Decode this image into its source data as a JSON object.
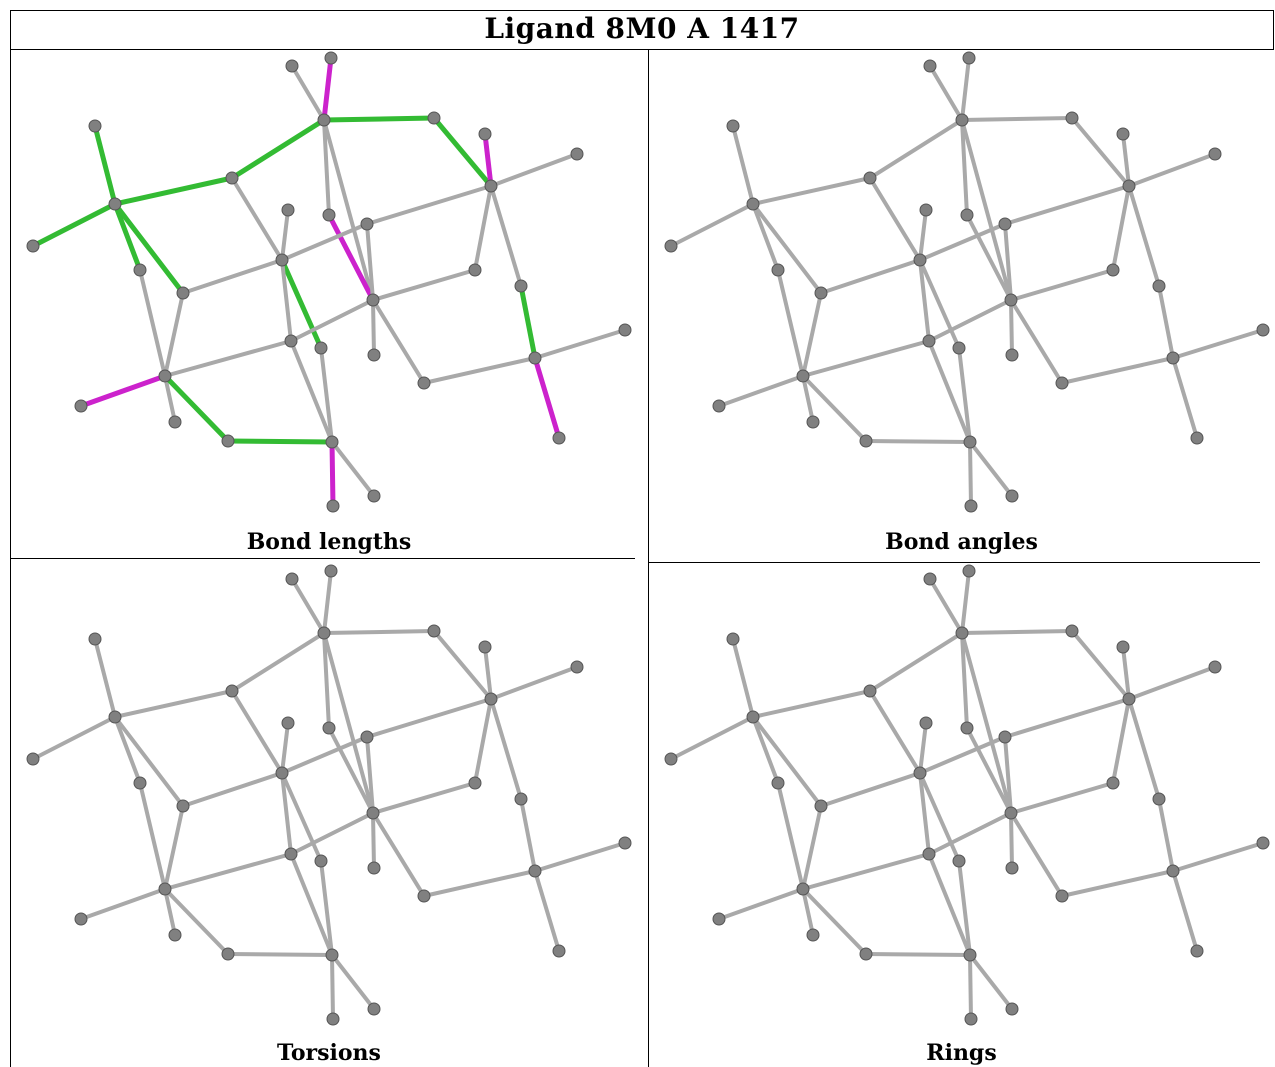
{
  "title": "Ligand 8M0 A 1417",
  "colors": {
    "bond_default": "#a9a9a9",
    "bond_outlier_long": "#cc22cc",
    "bond_outlier_short": "#33bb33",
    "atom_fill": "#808080",
    "atom_stroke": "#555555"
  },
  "panels": [
    {
      "caption": "Bond lengths",
      "highlight": true
    },
    {
      "caption": "Bond angles",
      "highlight": false
    },
    {
      "caption": "Torsions",
      "highlight": false
    },
    {
      "caption": "Rings",
      "highlight": false
    }
  ]
}
